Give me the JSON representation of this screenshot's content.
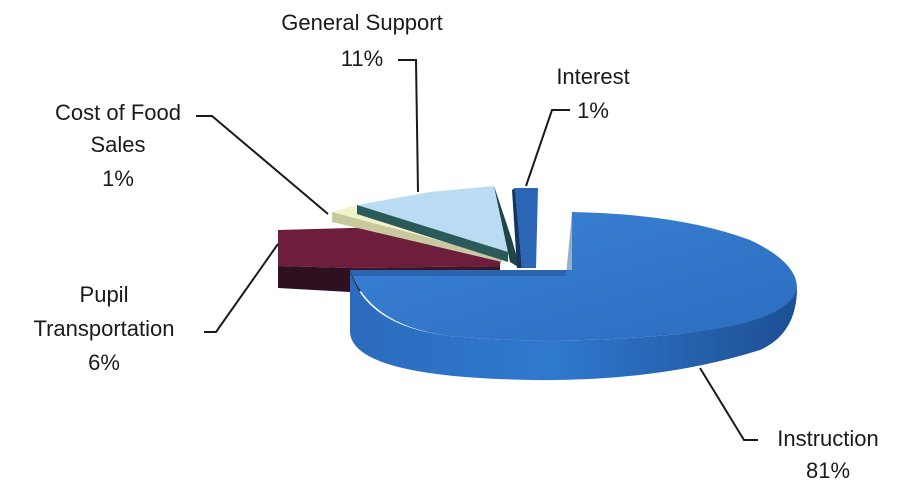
{
  "chart_data": {
    "type": "pie",
    "title": "",
    "style": "3d-exploded",
    "slices": [
      {
        "name": "Instruction",
        "value": 81,
        "value_label": "81%",
        "color": "#2f74c8"
      },
      {
        "name": "Interest",
        "value": 1,
        "value_label": "1%",
        "color": "#2a66b5"
      },
      {
        "name": "General Support",
        "value": 11,
        "value_label": "11%",
        "color": "#b9dcf2"
      },
      {
        "name": "Cost of Food Sales",
        "value": 1,
        "value_label": "1%",
        "color": "#f2f2c8"
      },
      {
        "name": "Pupil Transportation",
        "value": 6,
        "value_label": "6%",
        "color": "#6e1e3c"
      }
    ],
    "labels": {
      "general_support": [
        "General Support",
        "11%"
      ],
      "interest": [
        "Interest",
        "1%"
      ],
      "cost_of_food": [
        "Cost of Food",
        "Sales",
        "1%"
      ],
      "pupil_transportation": [
        "Pupil",
        "Transportation",
        "6%"
      ],
      "instruction": [
        "Instruction",
        "81%"
      ]
    }
  }
}
